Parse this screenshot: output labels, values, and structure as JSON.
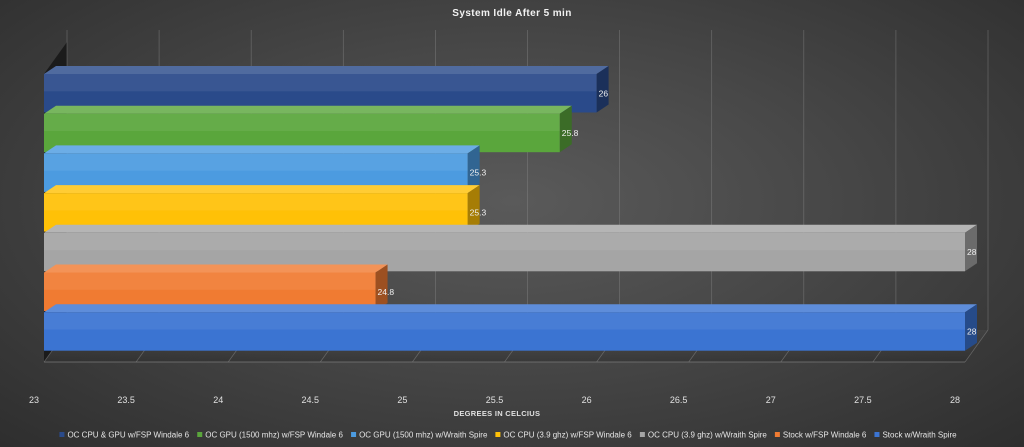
{
  "chart_data": {
    "type": "bar",
    "orientation": "horizontal",
    "style": "3d-clustered",
    "title": "System Idle After 5 min",
    "xlabel": "DEGREES IN CELCIUS",
    "ylabel": "",
    "xlim": [
      23,
      28
    ],
    "xticks": [
      "23",
      "23.5",
      "24",
      "24.5",
      "25",
      "25.5",
      "26",
      "26.5",
      "27",
      "27.5",
      "28"
    ],
    "grid": true,
    "legend_position": "bottom",
    "series": [
      {
        "name": "OC CPU & GPU w/FSP Windale 6",
        "value": 26,
        "label": "26",
        "color": "#2a4a8a"
      },
      {
        "name": "OC GPU (1500 mhz) w/FSP Windale 6",
        "value": 25.8,
        "label": "25.8",
        "color": "#5aa63c"
      },
      {
        "name": "OC GPU (1500 mhz) w/Wraith Spire",
        "value": 25.3,
        "label": "25.3",
        "color": "#4c9be0"
      },
      {
        "name": "OC CPU (3.9 ghz) w/FSP Windale 6",
        "value": 25.3,
        "label": "25.3",
        "color": "#ffc107"
      },
      {
        "name": "OC CPU (3.9 ghz) w/Wraith Spire",
        "value": 28,
        "label": "28",
        "color": "#a5a5a5"
      },
      {
        "name": "Stock w/FSP Windale 6",
        "value": 24.8,
        "label": "24.8",
        "color": "#f07b32"
      },
      {
        "name": "Stock w/Wraith Spire",
        "value": 28,
        "label": "28",
        "color": "#3b74d2"
      }
    ]
  }
}
